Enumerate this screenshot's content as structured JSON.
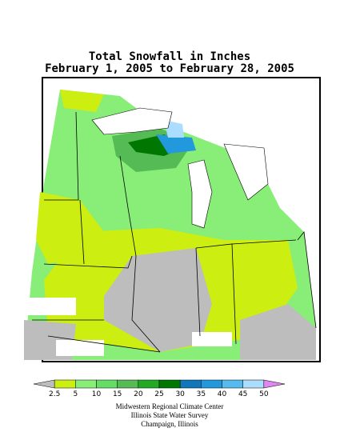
{
  "title": [
    "Total Snowfall in Inches",
    "February 1, 2005 to February 28, 2005"
  ],
  "legend": {
    "ticks": [
      2.5,
      5,
      10,
      15,
      20,
      25,
      30,
      35,
      40,
      45,
      50
    ],
    "colors": [
      "#bdbdbd",
      "#ccee11",
      "#88ee77",
      "#66dd66",
      "#55bb55",
      "#22aa22",
      "#007700",
      "#1177bb",
      "#2299dd",
      "#55bbee",
      "#aaddff",
      "#dd88ee"
    ]
  },
  "credits": [
    "Midwestern Regional Climate Center",
    "Illinois State Water Survey",
    "Champaign, Illinois"
  ]
}
